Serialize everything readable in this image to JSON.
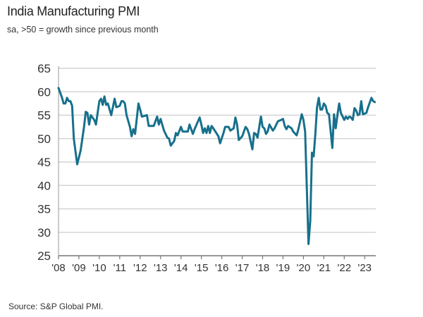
{
  "chart_data": {
    "type": "line",
    "title": "India Manufacturing PMI",
    "subtitle": "sa, >50 = growth since previous month",
    "source": "Source: S&P Global PMI.",
    "ylim": [
      25,
      65
    ],
    "yticks": [
      25,
      30,
      35,
      40,
      45,
      50,
      55,
      60,
      65
    ],
    "xlim": [
      "2008-01",
      "2023-07"
    ],
    "xtick_labels": [
      "'08",
      "'09",
      "'10",
      "'11",
      "'12",
      "'13",
      "'14",
      "'15",
      "'16",
      "'17",
      "'18",
      "'19",
      "'20",
      "'21",
      "'22",
      "'23"
    ],
    "grid": true,
    "line_color": "#17708c",
    "x": [
      "2008-01",
      "2008-03",
      "2008-04",
      "2008-05",
      "2008-06",
      "2008-07",
      "2008-08",
      "2008-09",
      "2008-10",
      "2008-12",
      "2009-01",
      "2009-02",
      "2009-04",
      "2009-05",
      "2009-06",
      "2009-07",
      "2009-08",
      "2009-10",
      "2009-11",
      "2010-01",
      "2010-02",
      "2010-03",
      "2010-04",
      "2010-05",
      "2010-06",
      "2010-08",
      "2010-10",
      "2010-11",
      "2011-01",
      "2011-02",
      "2011-03",
      "2011-04",
      "2011-05",
      "2011-07",
      "2011-08",
      "2011-09",
      "2011-10",
      "2011-12",
      "2012-01",
      "2012-02",
      "2012-05",
      "2012-06",
      "2012-09",
      "2012-11",
      "2012-12",
      "2013-01",
      "2013-03",
      "2013-05",
      "2013-06",
      "2013-07",
      "2013-09",
      "2013-10",
      "2013-11",
      "2014-01",
      "2014-02",
      "2014-05",
      "2014-06",
      "2014-08",
      "2014-09",
      "2014-12",
      "2015-01",
      "2015-02",
      "2015-03",
      "2015-04",
      "2015-05",
      "2015-06",
      "2015-07",
      "2015-08",
      "2015-11",
      "2015-12",
      "2016-02",
      "2016-03",
      "2016-05",
      "2016-06",
      "2016-08",
      "2016-09",
      "2016-10",
      "2016-11",
      "2017-01",
      "2017-03",
      "2017-04",
      "2017-05",
      "2017-07",
      "2017-08",
      "2017-09",
      "2017-10",
      "2017-12",
      "2018-01",
      "2018-02",
      "2018-03",
      "2018-04",
      "2018-05",
      "2018-07",
      "2018-08",
      "2018-10",
      "2018-12",
      "2019-01",
      "2019-02",
      "2019-03",
      "2019-04",
      "2019-06",
      "2019-07",
      "2019-09",
      "2019-10",
      "2019-12",
      "2020-01",
      "2020-02",
      "2020-04",
      "2020-05",
      "2020-06",
      "2020-07",
      "2020-08",
      "2020-09",
      "2020-10",
      "2020-11",
      "2020-12",
      "2021-01",
      "2021-02",
      "2021-03",
      "2021-04",
      "2021-06",
      "2021-07",
      "2021-08",
      "2021-09",
      "2021-10",
      "2021-11",
      "2022-01",
      "2022-02",
      "2022-03",
      "2022-04",
      "2022-05",
      "2022-06",
      "2022-07",
      "2022-08",
      "2022-09",
      "2022-10",
      "2022-11",
      "2022-12",
      "2023-02",
      "2023-03",
      "2023-05",
      "2023-06",
      "2023-07"
    ],
    "y": [
      60.8,
      58.8,
      57.5,
      57.5,
      58.7,
      58,
      58,
      57,
      50,
      44.5,
      46,
      47.5,
      52.5,
      55.7,
      55.5,
      53,
      55,
      54,
      53,
      58,
      58.5,
      57.2,
      59,
      57.2,
      57.5,
      55,
      58.5,
      56.7,
      57,
      58,
      58,
      57.5,
      55,
      52.5,
      50.5,
      52,
      51,
      57.5,
      56.2,
      54.7,
      55,
      52.7,
      52.7,
      54.7,
      53,
      54.2,
      51.7,
      50.2,
      50,
      48.5,
      49.5,
      51.2,
      50.7,
      52.5,
      51.5,
      51.5,
      53,
      51,
      52,
      54.5,
      53,
      51.2,
      52.2,
      51.2,
      52.7,
      51.2,
      52.7,
      52.2,
      50.5,
      49,
      51.2,
      52.5,
      52.5,
      51.7,
      52.2,
      54.5,
      53,
      49.7,
      50.5,
      52.5,
      52,
      51,
      47.7,
      51.2,
      51,
      50.2,
      54.7,
      52.5,
      52.2,
      51,
      51.5,
      53,
      51.7,
      52.2,
      53.7,
      54,
      54.2,
      52.7,
      52,
      52.7,
      52.2,
      51.5,
      50.7,
      52,
      55.2,
      54,
      51.5,
      27.5,
      32.5,
      47,
      46.2,
      51,
      56.7,
      58.7,
      56.2,
      56.2,
      57.5,
      57,
      55.5,
      55.2,
      48,
      55.2,
      52.2,
      55,
      57.5,
      55.5,
      54,
      54.7,
      54.2,
      54.7,
      54.5,
      54,
      56.5,
      56,
      55,
      55.2,
      58,
      55.2,
      55.5,
      56.7,
      58.7,
      58,
      57.8
    ]
  }
}
